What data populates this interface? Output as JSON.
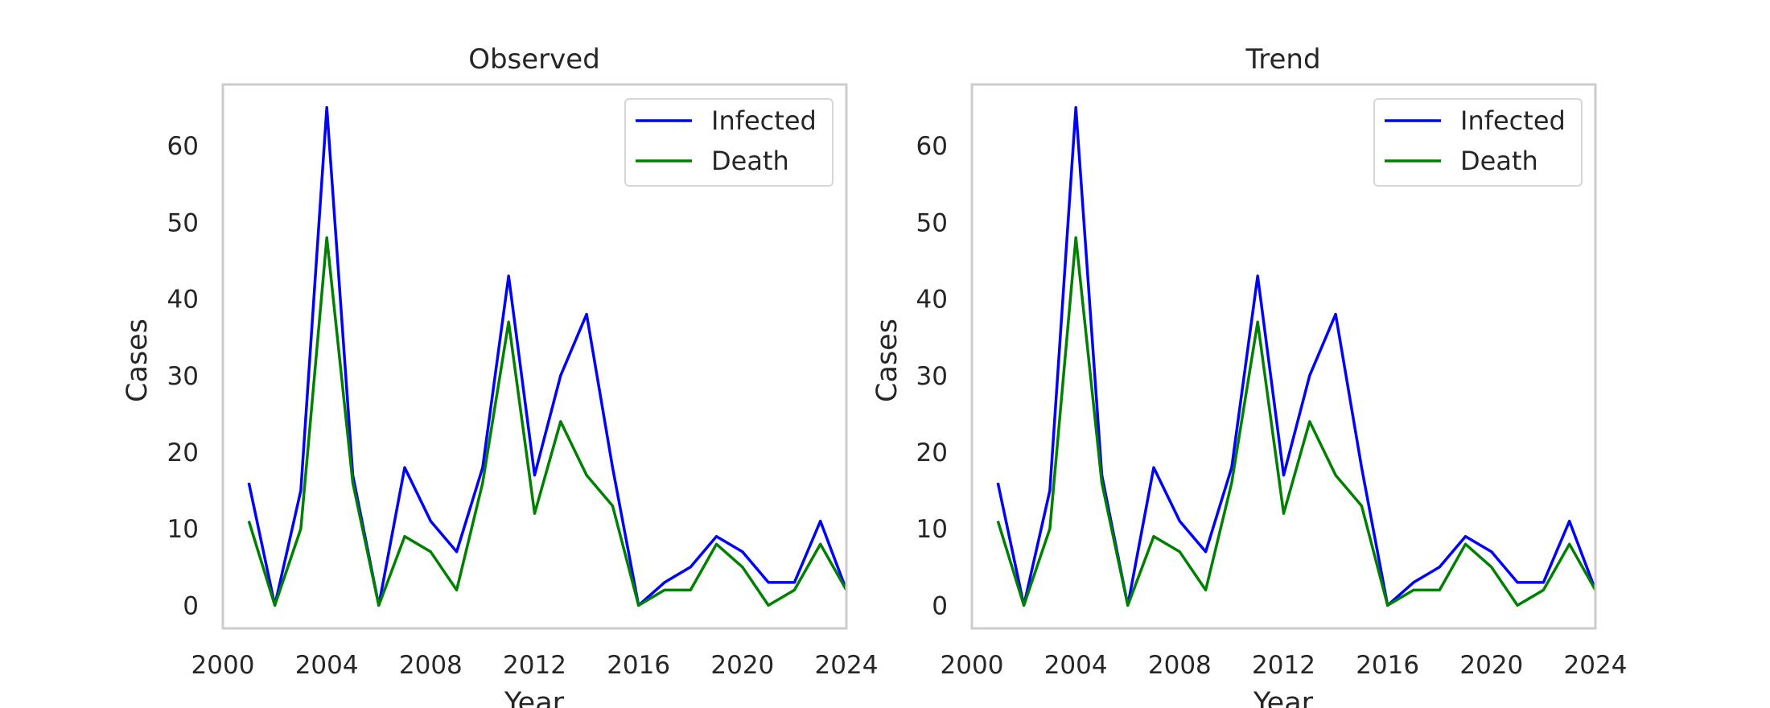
{
  "chart_data": [
    {
      "type": "line",
      "title": "Observed",
      "xlabel": "Year",
      "ylabel": "Cases",
      "xlim": [
        2000,
        2024
      ],
      "ylim": [
        -3,
        68
      ],
      "xticks": [
        "2000",
        "2004",
        "2008",
        "2012",
        "2016",
        "2020",
        "2024"
      ],
      "yticks": [
        "0",
        "10",
        "20",
        "30",
        "40",
        "50",
        "60"
      ],
      "grid": false,
      "legend": "top-right",
      "x": [
        2001,
        2002,
        2003,
        2004,
        2005,
        2006,
        2007,
        2008,
        2009,
        2010,
        2011,
        2012,
        2013,
        2014,
        2015,
        2016,
        2017,
        2018,
        2019,
        2020,
        2021,
        2022,
        2023,
        2024
      ],
      "series": [
        {
          "name": "Infected",
          "color": "#0000ff",
          "values": [
            16,
            0,
            15,
            65,
            17,
            0,
            18,
            11,
            7,
            18,
            43,
            17,
            30,
            38,
            18,
            0,
            3,
            5,
            9,
            7,
            3,
            3,
            11,
            2
          ]
        },
        {
          "name": "Death",
          "color": "#008000",
          "values": [
            11,
            0,
            10,
            48,
            16,
            0,
            9,
            7,
            2,
            16,
            37,
            12,
            24,
            17,
            13,
            0,
            2,
            2,
            8,
            5,
            0,
            2,
            8,
            2
          ]
        }
      ]
    },
    {
      "type": "line",
      "title": "Trend",
      "xlabel": "Year",
      "ylabel": "Cases",
      "xlim": [
        2000,
        2024
      ],
      "ylim": [
        -3,
        68
      ],
      "xticks": [
        "2000",
        "2004",
        "2008",
        "2012",
        "2016",
        "2020",
        "2024"
      ],
      "yticks": [
        "0",
        "10",
        "20",
        "30",
        "40",
        "50",
        "60"
      ],
      "grid": false,
      "legend": "top-right",
      "x": [
        2001,
        2002,
        2003,
        2004,
        2005,
        2006,
        2007,
        2008,
        2009,
        2010,
        2011,
        2012,
        2013,
        2014,
        2015,
        2016,
        2017,
        2018,
        2019,
        2020,
        2021,
        2022,
        2023,
        2024
      ],
      "series": [
        {
          "name": "Infected",
          "color": "#0000ff",
          "values": [
            16,
            0,
            15,
            65,
            17,
            0,
            18,
            11,
            7,
            18,
            43,
            17,
            30,
            38,
            18,
            0,
            3,
            5,
            9,
            7,
            3,
            3,
            11,
            2
          ]
        },
        {
          "name": "Death",
          "color": "#008000",
          "values": [
            11,
            0,
            10,
            48,
            16,
            0,
            9,
            7,
            2,
            16,
            37,
            12,
            24,
            17,
            13,
            0,
            2,
            2,
            8,
            5,
            0,
            2,
            8,
            2
          ]
        }
      ]
    }
  ]
}
